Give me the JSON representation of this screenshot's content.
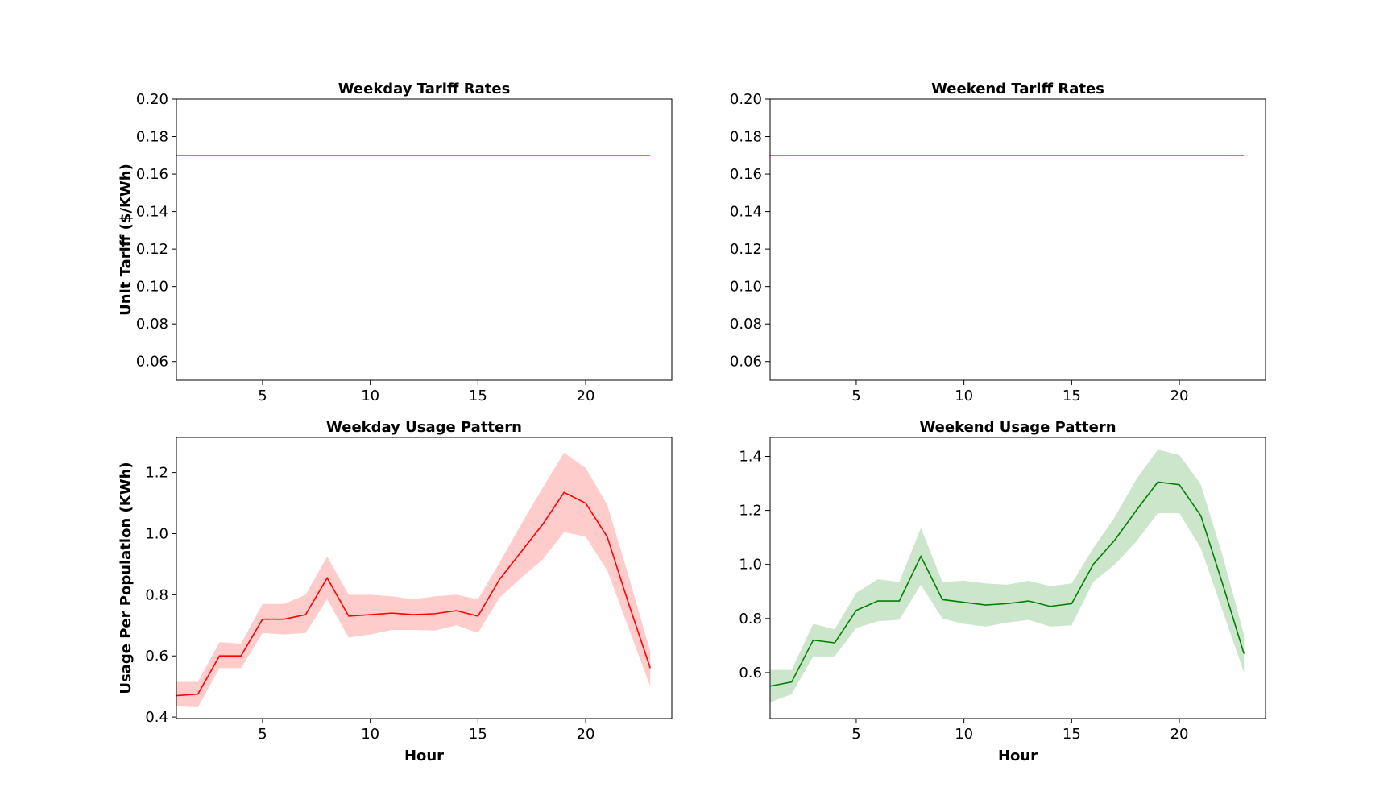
{
  "chart_data": [
    {
      "id": "weekday-tariff",
      "type": "line",
      "title": "Weekday Tariff Rates",
      "xlabel": "",
      "ylabel": "Unit Tariff ($/KWh)",
      "xlim": [
        1,
        24
      ],
      "ylim": [
        0.05,
        0.2
      ],
      "xticks": [
        5,
        10,
        15,
        20
      ],
      "yticks": [
        0.06,
        0.08,
        0.1,
        0.12,
        0.14,
        0.16,
        0.18,
        0.2
      ],
      "ytick_decimals": 2,
      "color": "#ff0000",
      "band_color": "#ffcccc",
      "x": [
        1,
        2,
        3,
        4,
        5,
        6,
        7,
        8,
        9,
        10,
        11,
        12,
        13,
        14,
        15,
        16,
        17,
        18,
        19,
        20,
        21,
        22,
        23
      ],
      "series": [
        {
          "values": [
            0.17,
            0.17,
            0.17,
            0.17,
            0.17,
            0.17,
            0.17,
            0.17,
            0.17,
            0.17,
            0.17,
            0.17,
            0.17,
            0.17,
            0.17,
            0.17,
            0.17,
            0.17,
            0.17,
            0.17,
            0.17,
            0.17,
            0.17
          ]
        }
      ]
    },
    {
      "id": "weekend-tariff",
      "type": "line",
      "title": "Weekend Tariff Rates",
      "xlabel": "",
      "ylabel": "",
      "xlim": [
        1,
        24
      ],
      "ylim": [
        0.05,
        0.2
      ],
      "xticks": [
        5,
        10,
        15,
        20
      ],
      "yticks": [
        0.06,
        0.08,
        0.1,
        0.12,
        0.14,
        0.16,
        0.18,
        0.2
      ],
      "ytick_decimals": 2,
      "color": "#008000",
      "band_color": "#cce6cc",
      "x": [
        1,
        2,
        3,
        4,
        5,
        6,
        7,
        8,
        9,
        10,
        11,
        12,
        13,
        14,
        15,
        16,
        17,
        18,
        19,
        20,
        21,
        22,
        23
      ],
      "series": [
        {
          "values": [
            0.17,
            0.17,
            0.17,
            0.17,
            0.17,
            0.17,
            0.17,
            0.17,
            0.17,
            0.17,
            0.17,
            0.17,
            0.17,
            0.17,
            0.17,
            0.17,
            0.17,
            0.17,
            0.17,
            0.17,
            0.17,
            0.17,
            0.17
          ]
        }
      ]
    },
    {
      "id": "weekday-usage",
      "type": "area",
      "title": "Weekday Usage Pattern",
      "xlabel": "Hour",
      "ylabel": "Usage Per Population (KWh)",
      "xlim": [
        1,
        24
      ],
      "ylim": [
        0.395,
        1.315
      ],
      "xticks": [
        5,
        10,
        15,
        20
      ],
      "yticks": [
        0.4,
        0.6,
        0.8,
        1.0,
        1.2
      ],
      "ytick_decimals": 1,
      "color": "#ff0000",
      "band_color": "#ffcccc",
      "x": [
        1,
        2,
        3,
        4,
        5,
        6,
        7,
        8,
        9,
        10,
        11,
        12,
        13,
        14,
        15,
        16,
        17,
        18,
        19,
        20,
        21,
        22,
        23
      ],
      "series": [
        {
          "values": [
            0.47,
            0.475,
            0.6,
            0.6,
            0.72,
            0.72,
            0.735,
            0.855,
            0.73,
            0.735,
            0.74,
            0.735,
            0.738,
            0.748,
            0.73,
            0.85,
            0.94,
            1.03,
            1.135,
            1.1,
            0.99,
            0.77,
            0.56
          ],
          "lower": [
            0.435,
            0.432,
            0.56,
            0.56,
            0.675,
            0.67,
            0.675,
            0.785,
            0.66,
            0.67,
            0.685,
            0.685,
            0.683,
            0.7,
            0.675,
            0.79,
            0.855,
            0.915,
            1.005,
            0.99,
            0.88,
            0.69,
            0.5
          ],
          "upper": [
            0.515,
            0.515,
            0.645,
            0.64,
            0.77,
            0.77,
            0.8,
            0.925,
            0.8,
            0.8,
            0.795,
            0.785,
            0.795,
            0.8,
            0.785,
            0.905,
            1.03,
            1.15,
            1.265,
            1.215,
            1.095,
            0.86,
            0.615
          ]
        }
      ]
    },
    {
      "id": "weekend-usage",
      "type": "area",
      "title": "Weekend Usage Pattern",
      "xlabel": "Hour",
      "ylabel": "",
      "xlim": [
        1,
        24
      ],
      "ylim": [
        0.43,
        1.47
      ],
      "xticks": [
        5,
        10,
        15,
        20
      ],
      "yticks": [
        0.6,
        0.8,
        1.0,
        1.2,
        1.4
      ],
      "ytick_decimals": 1,
      "color": "#008000",
      "band_color": "#cce6cc",
      "x": [
        1,
        2,
        3,
        4,
        5,
        6,
        7,
        8,
        9,
        10,
        11,
        12,
        13,
        14,
        15,
        16,
        17,
        18,
        19,
        20,
        21,
        22,
        23
      ],
      "series": [
        {
          "values": [
            0.55,
            0.565,
            0.72,
            0.71,
            0.83,
            0.865,
            0.865,
            1.03,
            0.87,
            0.86,
            0.85,
            0.855,
            0.865,
            0.845,
            0.855,
            1.0,
            1.09,
            1.2,
            1.305,
            1.295,
            1.18,
            0.93,
            0.67
          ],
          "lower": [
            0.49,
            0.52,
            0.66,
            0.66,
            0.765,
            0.79,
            0.795,
            0.925,
            0.8,
            0.78,
            0.77,
            0.785,
            0.795,
            0.77,
            0.775,
            0.935,
            1.0,
            1.085,
            1.19,
            1.19,
            1.06,
            0.83,
            0.6
          ],
          "upper": [
            0.61,
            0.61,
            0.78,
            0.76,
            0.895,
            0.945,
            0.935,
            1.135,
            0.935,
            0.94,
            0.93,
            0.925,
            0.94,
            0.92,
            0.93,
            1.06,
            1.175,
            1.315,
            1.425,
            1.405,
            1.295,
            1.035,
            0.74
          ]
        }
      ]
    }
  ]
}
